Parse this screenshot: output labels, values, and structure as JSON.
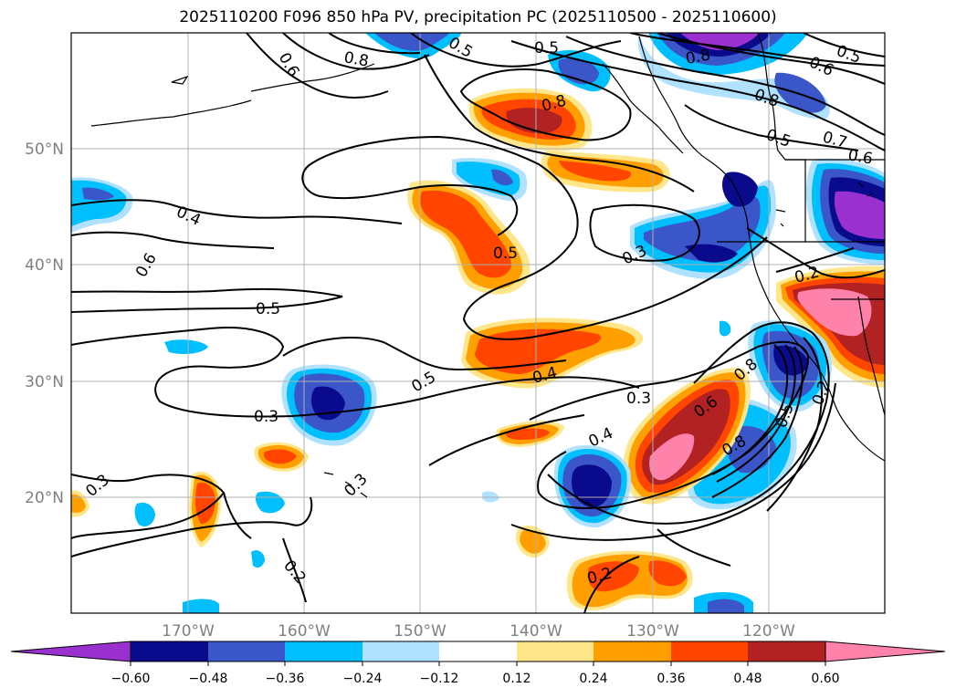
{
  "title": "2025110200 F096 850 hPa PV, precipitation PC (2025110500 - 2025110600)",
  "lat_labels": [
    "50°N",
    "40°N",
    "30°N",
    "20°N"
  ],
  "lon_labels": [
    "170°W",
    "160°W",
    "150°W",
    "140°W",
    "130°W",
    "120°W"
  ],
  "colorbar": {
    "ticks": [
      "−0.60",
      "−0.48",
      "−0.36",
      "−0.24",
      "−0.12",
      "0.12",
      "0.24",
      "0.36",
      "0.48",
      "0.60"
    ],
    "colors": [
      "#9b30d0",
      "#0a0a8c",
      "#3a56c8",
      "#00bfff",
      "#b0e2ff",
      "#ffffff",
      "#ffe68a",
      "#ffa000",
      "#ff4500",
      "#b22222",
      "#ff82ab"
    ],
    "extend": "both"
  },
  "contour_labels": [
    "0.4",
    "0.6",
    "0.5",
    "0.3",
    "0.3",
    "0.5",
    "0.5",
    "0.4",
    "0.3",
    "0.4",
    "0.6",
    "0.8",
    "0.5",
    "0.2",
    "0.2",
    "0.8",
    "0.8",
    "0.8",
    "0.5",
    "0.5",
    "0.7",
    "0.6",
    "0.6",
    "0.2",
    "0.3",
    "0.5",
    "0.8",
    "0.3",
    "0.2",
    "0.5",
    "0.6",
    "0.8"
  ]
}
